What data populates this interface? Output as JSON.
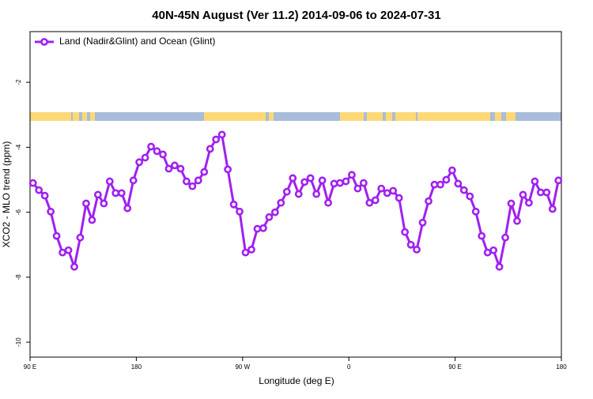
{
  "chart_data": {
    "type": "line",
    "title": "40N-45N August (Ver 11.2)   2014-09-06 to 2024-07-31",
    "xlabel": "Longitude (deg E)",
    "ylabel": "XCO2 - MLO trend (ppm)",
    "xlim": [
      90,
      540
    ],
    "ylim": [
      -10.46,
      -0.44
    ],
    "xticks": [
      {
        "value": 90,
        "label": "90 E"
      },
      180,
      {
        "value": 270,
        "label": "90 W"
      },
      {
        "value": 360,
        "label": "0"
      },
      {
        "value": 450,
        "label": "90 E"
      },
      {
        "value": 540,
        "label": "180"
      }
    ],
    "yticks": [
      -2,
      -4,
      -6,
      -8,
      -10
    ],
    "legend": "top-left",
    "series": [
      {
        "name": "Land (Nadir&Glint) and Ocean (Glint)",
        "color": "#a020f0",
        "x": [
          92.5,
          97.5,
          102.5,
          107.5,
          112.5,
          117.5,
          122.5,
          127.5,
          132.5,
          137.5,
          142.5,
          147.5,
          152.5,
          157.5,
          162.5,
          167.5,
          172.5,
          177.5,
          182.5,
          187.5,
          192.5,
          197.5,
          202.5,
          207.5,
          212.5,
          217.5,
          222.5,
          227.5,
          232.5,
          237.5,
          242.5,
          247.5,
          252.5,
          257.5,
          262.5,
          267.5,
          272.5,
          277.5,
          282.5,
          287.5,
          292.5,
          297.5,
          302.5,
          307.5,
          312.5,
          317.5,
          322.5,
          327.5,
          332.5,
          337.5,
          342.5,
          347.5,
          352.5,
          357.5,
          362.5,
          367.5,
          372.5,
          377.5,
          382.5,
          387.5,
          392.5,
          397.5,
          402.5,
          407.5,
          412.5,
          417.5,
          422.5,
          427.5,
          432.5,
          437.5,
          442.5,
          447.5,
          452.5,
          457.5,
          462.5,
          467.5,
          472.5,
          477.5,
          482.5,
          487.5,
          492.5,
          497.5,
          502.5,
          507.5,
          512.5,
          517.5,
          522.5,
          527.5,
          532.5,
          537.5
        ],
        "values": [
          -5.1,
          -5.32,
          -5.49,
          -5.98,
          -6.73,
          -7.24,
          -7.17,
          -7.68,
          -6.78,
          -5.73,
          -6.24,
          -5.46,
          -5.73,
          -5.05,
          -5.41,
          -5.41,
          -5.88,
          -5.02,
          -4.46,
          -4.32,
          -3.98,
          -4.12,
          -4.22,
          -4.66,
          -4.56,
          -4.66,
          -5.05,
          -5.2,
          -5.02,
          -4.76,
          -4.05,
          -3.76,
          -3.61,
          -4.68,
          -5.76,
          -5.98,
          -7.24,
          -7.15,
          -6.51,
          -6.49,
          -6.15,
          -6.0,
          -5.71,
          -5.37,
          -4.95,
          -5.44,
          -5.07,
          -4.95,
          -5.44,
          -5.02,
          -5.71,
          -5.12,
          -5.1,
          -5.05,
          -4.85,
          -5.27,
          -5.1,
          -5.71,
          -5.63,
          -5.27,
          -5.41,
          -5.34,
          -5.56,
          -6.61,
          -7.0,
          -7.15,
          -6.32,
          -5.66,
          -5.15,
          -5.15,
          -5.0,
          -4.71,
          -5.12,
          -5.32,
          -5.51,
          -5.98,
          -6.73,
          -7.24,
          -7.17,
          -7.68,
          -6.78,
          -5.73,
          -6.27,
          -5.46,
          -5.71,
          -5.05,
          -5.39,
          -5.39,
          -5.9,
          -5.02
        ]
      }
    ]
  }
}
